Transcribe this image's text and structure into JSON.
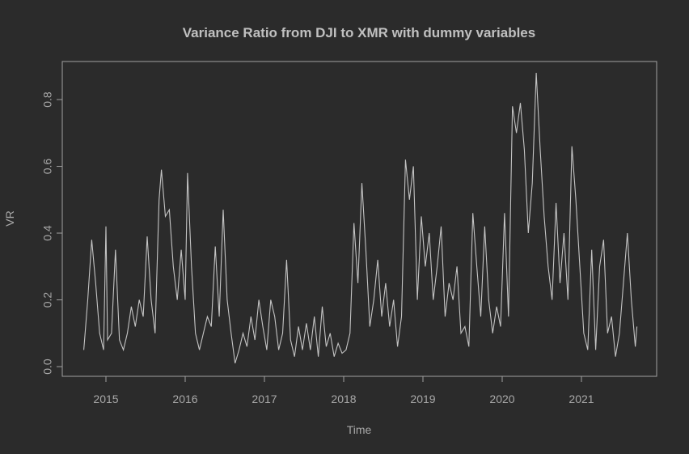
{
  "chart_data": {
    "type": "line",
    "title": "Variance Ratio from DJI to XMR with dummy variables",
    "x_label": "Time",
    "y_label": "VR",
    "color": "#c4c4c4",
    "xlim": [
      2014.449,
      2021.949
    ],
    "ylim": [
      -0.029,
      0.914
    ],
    "xticks": [
      2015,
      2016,
      2017,
      2018,
      2019,
      2020,
      2021
    ],
    "yticks": [
      {
        "value": 0,
        "label": "0.0"
      },
      0.2,
      0.4,
      0.6,
      0.8
    ],
    "series": [
      {
        "x": [
          2014.72,
          2014.77,
          2014.82,
          2014.87,
          2014.92,
          2014.97,
          2015.0,
          2015.02,
          2015.07,
          2015.12,
          2015.17,
          2015.22,
          2015.27,
          2015.32,
          2015.37,
          2015.42,
          2015.47,
          2015.52,
          2015.57,
          2015.62,
          2015.67,
          2015.7,
          2015.75,
          2015.8,
          2015.85,
          2015.9,
          2015.95,
          2016.0,
          2016.03,
          2016.08,
          2016.13,
          2016.18,
          2016.23,
          2016.28,
          2016.33,
          2016.38,
          2016.43,
          2016.48,
          2016.53,
          2016.58,
          2016.63,
          2016.68,
          2016.73,
          2016.78,
          2016.83,
          2016.88,
          2016.93,
          2016.98,
          2017.03,
          2017.08,
          2017.13,
          2017.18,
          2017.23,
          2017.28,
          2017.33,
          2017.38,
          2017.43,
          2017.48,
          2017.53,
          2017.58,
          2017.63,
          2017.68,
          2017.73,
          2017.78,
          2017.83,
          2017.88,
          2017.93,
          2017.98,
          2018.03,
          2018.08,
          2018.13,
          2018.18,
          2018.23,
          2018.28,
          2018.33,
          2018.38,
          2018.43,
          2018.48,
          2018.53,
          2018.58,
          2018.63,
          2018.68,
          2018.73,
          2018.78,
          2018.83,
          2018.88,
          2018.93,
          2018.98,
          2019.03,
          2019.08,
          2019.13,
          2019.18,
          2019.23,
          2019.28,
          2019.33,
          2019.38,
          2019.43,
          2019.48,
          2019.53,
          2019.58,
          2019.63,
          2019.68,
          2019.73,
          2019.78,
          2019.83,
          2019.88,
          2019.93,
          2019.98,
          2020.03,
          2020.08,
          2020.13,
          2020.18,
          2020.23,
          2020.28,
          2020.33,
          2020.38,
          2020.43,
          2020.48,
          2020.53,
          2020.58,
          2020.63,
          2020.68,
          2020.73,
          2020.78,
          2020.83,
          2020.88,
          2020.93,
          2020.98,
          2021.03,
          2021.08,
          2021.13,
          2021.18,
          2021.23,
          2021.28,
          2021.33,
          2021.38,
          2021.43,
          2021.48,
          2021.53,
          2021.58,
          2021.63,
          2021.68,
          2021.7
        ],
        "values": [
          0.05,
          0.2,
          0.38,
          0.25,
          0.1,
          0.05,
          0.42,
          0.08,
          0.1,
          0.35,
          0.08,
          0.05,
          0.1,
          0.18,
          0.12,
          0.2,
          0.15,
          0.39,
          0.2,
          0.1,
          0.5,
          0.59,
          0.45,
          0.47,
          0.3,
          0.2,
          0.35,
          0.2,
          0.58,
          0.3,
          0.1,
          0.05,
          0.1,
          0.15,
          0.12,
          0.36,
          0.15,
          0.47,
          0.2,
          0.1,
          0.01,
          0.05,
          0.1,
          0.06,
          0.15,
          0.08,
          0.2,
          0.12,
          0.05,
          0.2,
          0.15,
          0.05,
          0.1,
          0.32,
          0.08,
          0.03,
          0.12,
          0.05,
          0.13,
          0.05,
          0.15,
          0.03,
          0.18,
          0.06,
          0.1,
          0.03,
          0.07,
          0.04,
          0.05,
          0.1,
          0.43,
          0.25,
          0.55,
          0.35,
          0.12,
          0.2,
          0.32,
          0.15,
          0.25,
          0.12,
          0.2,
          0.06,
          0.15,
          0.62,
          0.5,
          0.6,
          0.2,
          0.45,
          0.3,
          0.4,
          0.2,
          0.3,
          0.42,
          0.15,
          0.25,
          0.2,
          0.3,
          0.1,
          0.12,
          0.06,
          0.46,
          0.3,
          0.15,
          0.42,
          0.2,
          0.1,
          0.18,
          0.12,
          0.46,
          0.15,
          0.78,
          0.7,
          0.79,
          0.65,
          0.4,
          0.55,
          0.88,
          0.65,
          0.45,
          0.3,
          0.2,
          0.49,
          0.25,
          0.4,
          0.2,
          0.66,
          0.5,
          0.3,
          0.1,
          0.05,
          0.35,
          0.05,
          0.3,
          0.38,
          0.1,
          0.15,
          0.03,
          0.1,
          0.25,
          0.4,
          0.2,
          0.06,
          0.12
        ]
      }
    ]
  }
}
